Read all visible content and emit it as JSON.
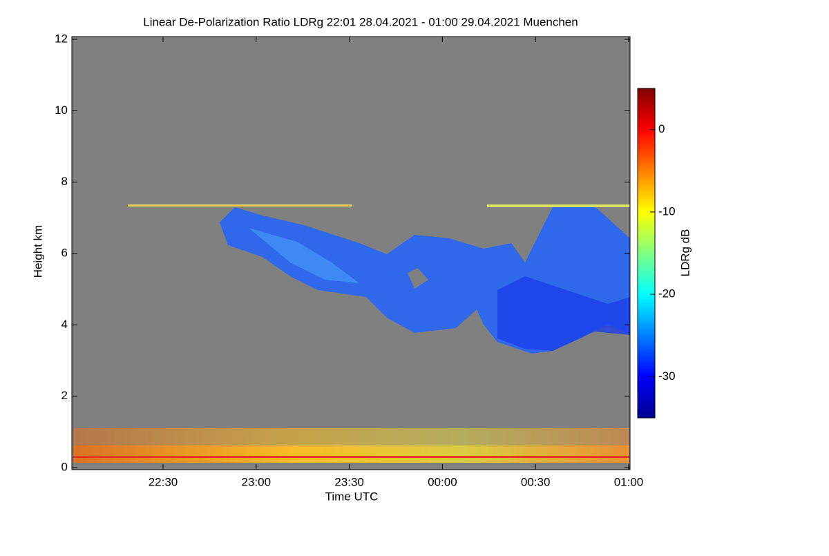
{
  "chart_data": {
    "type": "heatmap",
    "title": "Linear De-Polarization Ratio LDRg   22:01 28.04.2021 - 01:00 29.04.2021 Muenchen",
    "xlabel": "Time UTC",
    "ylabel": "Height km",
    "xlim": [
      22.0167,
      25
    ],
    "xticks": [
      {
        "value": 22.5,
        "label": "22:30"
      },
      {
        "value": 23,
        "label": "23:00"
      },
      {
        "value": 23.5,
        "label": "23:30"
      },
      {
        "value": 24,
        "label": "00:00"
      },
      {
        "value": 24.5,
        "label": "00:30"
      },
      {
        "value": 25,
        "label": "01:00"
      }
    ],
    "ylim": [
      0,
      12
    ],
    "yticks": [
      0,
      2,
      4,
      6,
      8,
      10,
      12
    ],
    "colorbar": {
      "label": "LDRg dB",
      "lim": [
        -35,
        5
      ],
      "ticks": [
        0,
        -10,
        -20,
        -30
      ],
      "colormap": "jet"
    },
    "background": "#808080"
  }
}
